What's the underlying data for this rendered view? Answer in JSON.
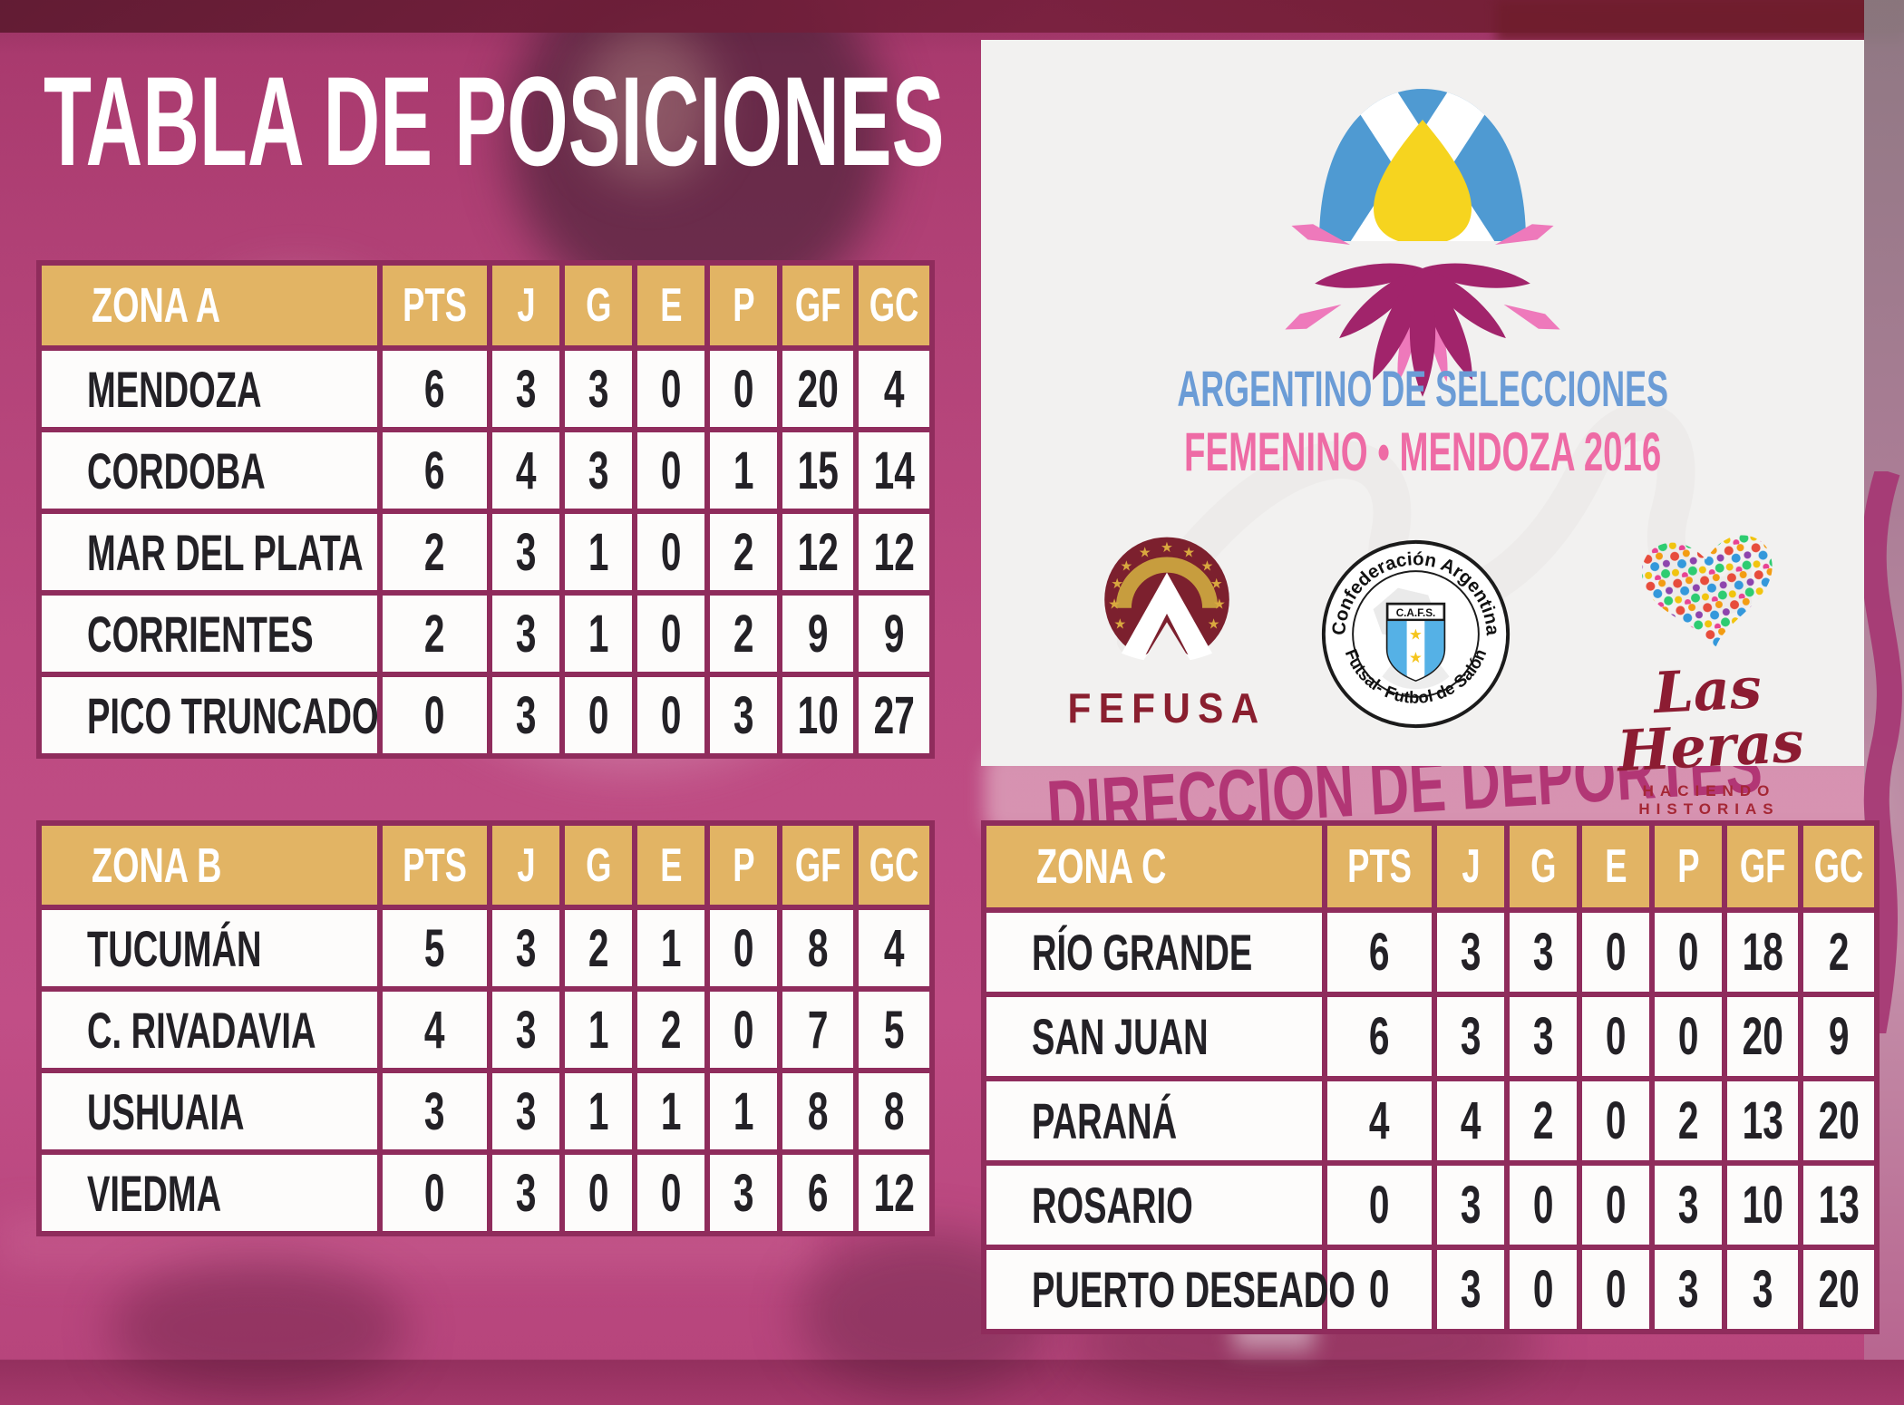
{
  "title": "TABLA DE POSICIONES",
  "panel": {
    "headline_line1": "ARGENTINO DE SELECCIONES",
    "headline_line2": "FEMENINO • MENDOZA 2016"
  },
  "sponsors": {
    "fefusa": {
      "name": "FEFUSA"
    },
    "cafs": {
      "arc_top": "Confederación Argentina",
      "arc_bottom": "Futsal- Futbol de Salón",
      "shield": "C.A.F.S."
    },
    "las_heras": {
      "name": "Las Heras",
      "tagline": "HACIENDO HISTORIAS"
    }
  },
  "background": {
    "mural_text": "DIRECCIÓN DE DEPORTES"
  },
  "columns": [
    "PTS",
    "J",
    "G",
    "E",
    "P",
    "GF",
    "GC"
  ],
  "tables": [
    {
      "zone": "ZONA A",
      "rows": [
        [
          "MENDOZA",
          6,
          3,
          3,
          0,
          0,
          20,
          4
        ],
        [
          "CORDOBA",
          6,
          4,
          3,
          0,
          1,
          15,
          14
        ],
        [
          "MAR DEL PLATA",
          2,
          3,
          1,
          0,
          2,
          12,
          12
        ],
        [
          "CORRIENTES",
          2,
          3,
          1,
          0,
          2,
          9,
          9
        ],
        [
          "PICO TRUNCADO",
          0,
          3,
          0,
          0,
          3,
          10,
          27
        ]
      ]
    },
    {
      "zone": "ZONA B",
      "rows": [
        [
          "TUCUMÁN",
          5,
          3,
          2,
          1,
          0,
          8,
          4
        ],
        [
          "C. RIVADAVIA",
          4,
          3,
          1,
          2,
          0,
          7,
          5
        ],
        [
          "USHUAIA",
          3,
          3,
          1,
          1,
          1,
          8,
          8
        ],
        [
          "VIEDMA",
          0,
          3,
          0,
          0,
          3,
          6,
          12
        ]
      ]
    },
    {
      "zone": "ZONA C",
      "rows": [
        [
          "RÍO GRANDE",
          6,
          3,
          3,
          0,
          0,
          18,
          2
        ],
        [
          "SAN JUAN",
          6,
          3,
          3,
          0,
          0,
          20,
          9
        ],
        [
          "PARANÁ",
          4,
          4,
          2,
          0,
          2,
          13,
          20
        ],
        [
          "ROSARIO",
          0,
          3,
          0,
          0,
          3,
          10,
          13
        ],
        [
          "PUERTO DESEADO",
          0,
          3,
          0,
          0,
          3,
          3,
          20
        ]
      ]
    }
  ],
  "colors": {
    "header_gold": "#e2b464",
    "table_border": "#8f2c5c",
    "cell_bg": "#fdfcfb",
    "cell_text": "#232126",
    "background_magenta": "#b5437b",
    "title_text": "#ffffff",
    "headline_blue": "#6b9cd6",
    "headline_pink": "#ee6ba5",
    "logo_magenta": "#a1246b",
    "logo_pink": "#ee79bb",
    "logo_blue": "#4f9ad2",
    "logo_yellow": "#f6d41f",
    "fefusa_maroon": "#7c202e",
    "fefusa_gold": "#c79d3e",
    "lasheras_red": "#8c1c32"
  }
}
